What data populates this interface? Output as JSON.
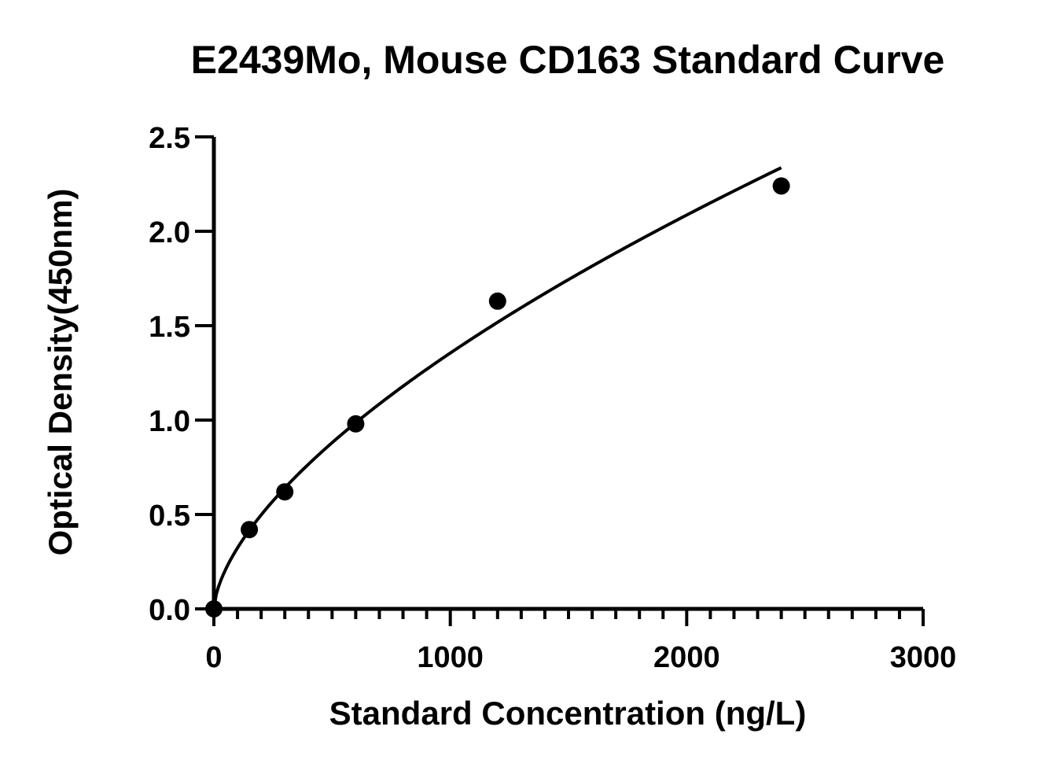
{
  "chart_data": {
    "type": "scatter",
    "title": "E2439Mo, Mouse CD163 Standard Curve",
    "xlabel": "Standard Concentration (ng/L)",
    "ylabel": "Optical Density(450nm)",
    "xlim": [
      0,
      3000
    ],
    "ylim": [
      0,
      2.5
    ],
    "x_ticks": [
      0,
      1000,
      2000,
      3000
    ],
    "x_tick_labels": [
      "0",
      "1000",
      "2000",
      "3000"
    ],
    "x_minor_step": 100,
    "y_ticks": [
      0,
      0.5,
      1.0,
      1.5,
      2.0,
      2.5
    ],
    "y_tick_labels": [
      "0.0",
      "0.5",
      "1.0",
      "1.5",
      "2.0",
      "2.5"
    ],
    "grid": false,
    "series": [
      {
        "points": [
          {
            "x": 0,
            "y": 0.0
          },
          {
            "x": 150,
            "y": 0.42
          },
          {
            "x": 300,
            "y": 0.62
          },
          {
            "x": 600,
            "y": 0.98
          },
          {
            "x": 1200,
            "y": 1.63
          },
          {
            "x": 2400,
            "y": 2.24
          }
        ],
        "fit_curve": "four-parameter logistic",
        "color": "#000000"
      }
    ]
  }
}
